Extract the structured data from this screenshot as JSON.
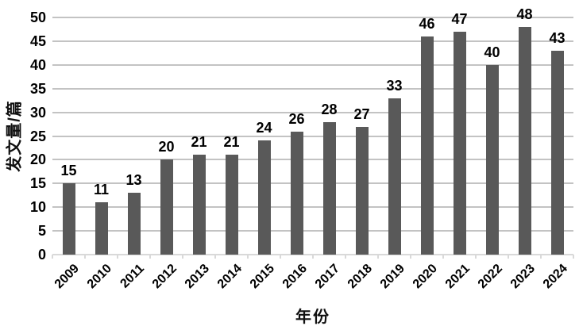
{
  "chart_data": {
    "type": "bar",
    "categories": [
      "2009",
      "2010",
      "2011",
      "2012",
      "2013",
      "2014",
      "2015",
      "2016",
      "2017",
      "2018",
      "2019",
      "2020",
      "2021",
      "2022",
      "2023",
      "2024"
    ],
    "values": [
      15,
      11,
      13,
      20,
      21,
      21,
      24,
      26,
      28,
      27,
      33,
      46,
      47,
      40,
      48,
      43
    ],
    "title": "",
    "xlabel": "年份",
    "ylabel": "发文量/篇",
    "ylim": [
      0,
      50
    ],
    "ytick_step": 5,
    "grid": true,
    "legend": "none",
    "bar_color": "#595959",
    "gridline_color": "#c3c3c3",
    "axis_line_color": "#d9d9d9",
    "text_color": "#000000"
  }
}
